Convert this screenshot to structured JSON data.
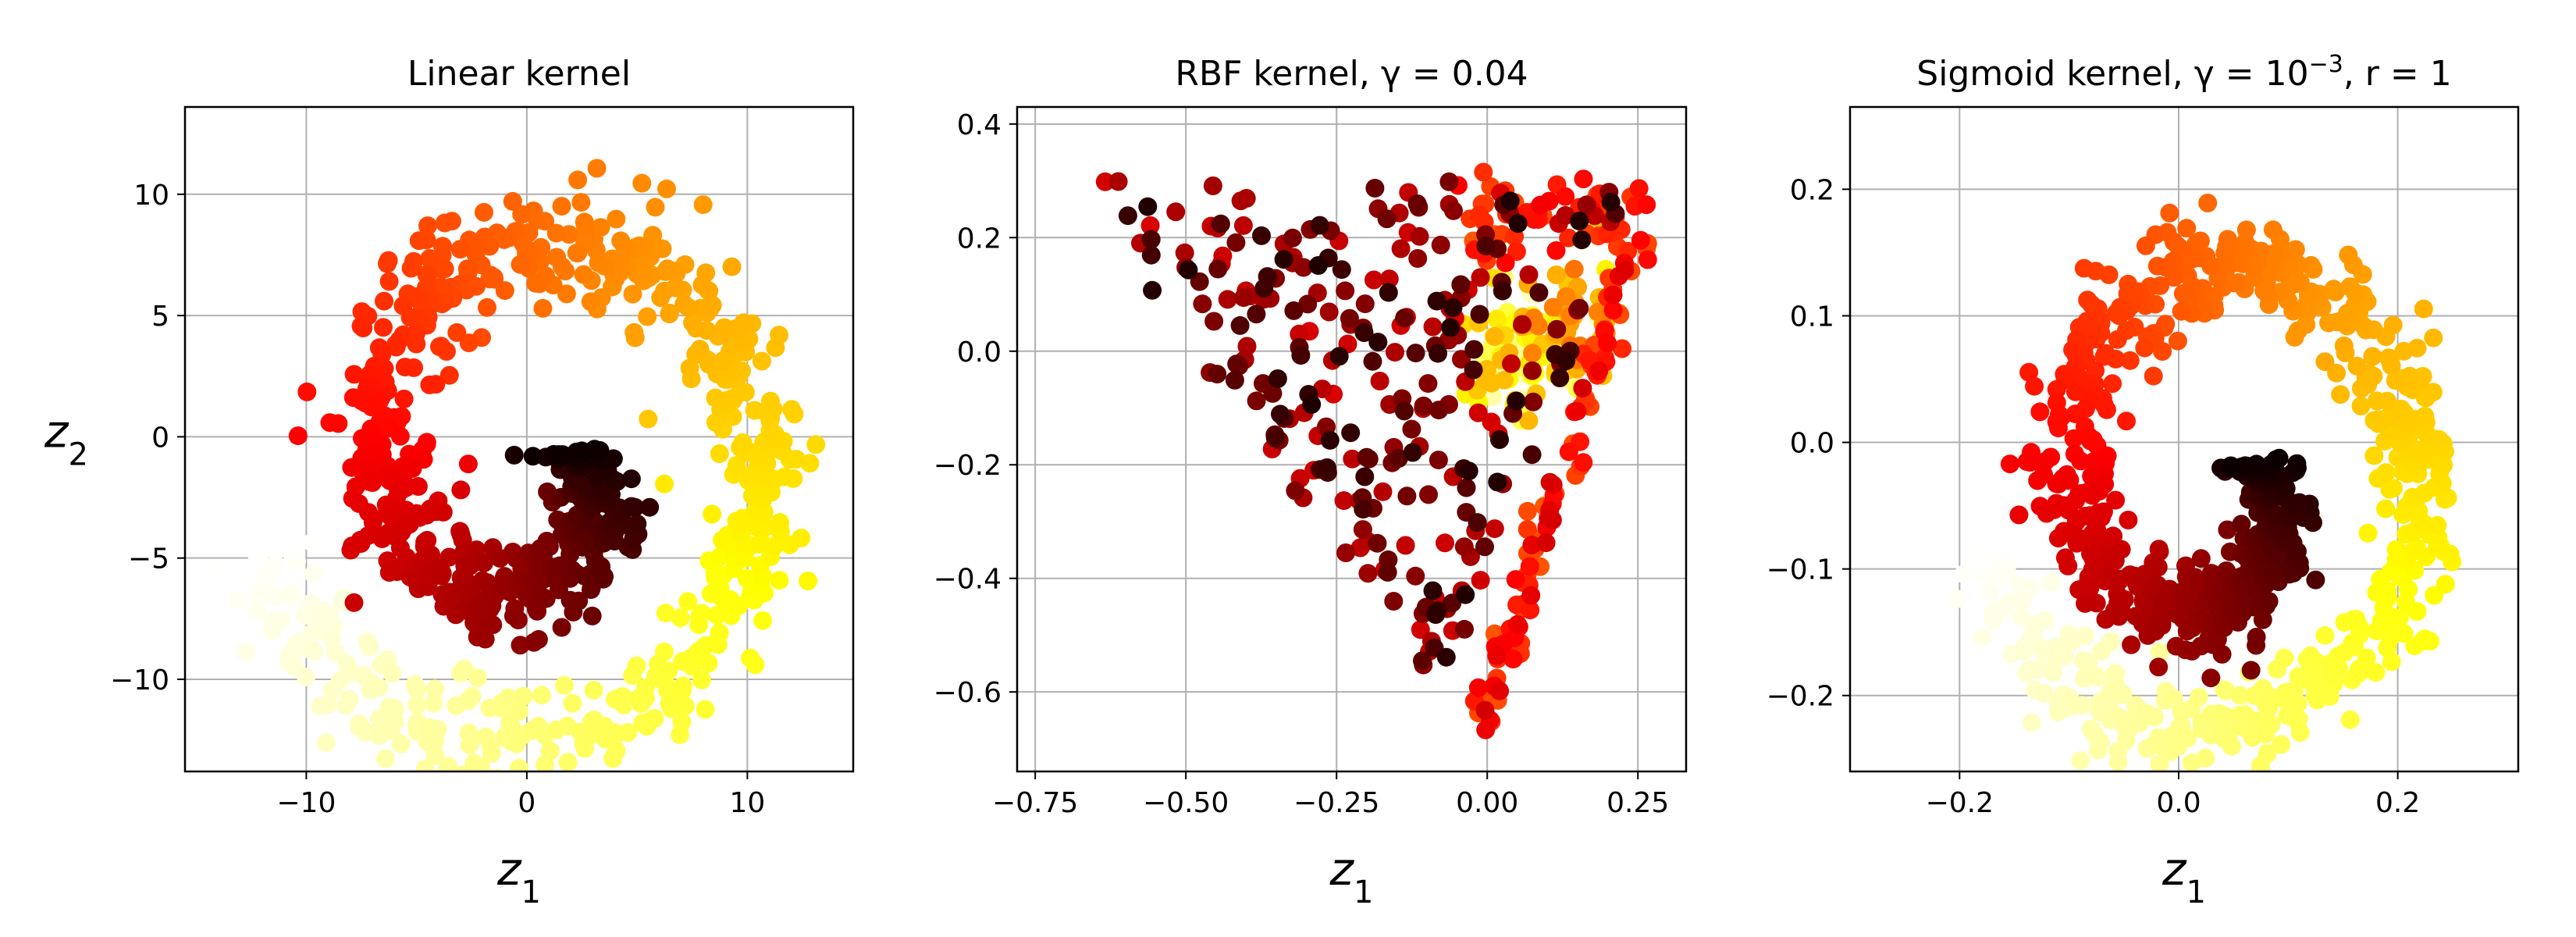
{
  "chart_data": [
    {
      "type": "scatter",
      "title_main": "Linear kernel",
      "title_sup": "",
      "title_tail": "",
      "xlabel": "z",
      "xlabel_sub": "1",
      "ylabel": "z",
      "ylabel_sub": "2",
      "xlim": [
        -15.5,
        14.8
      ],
      "ylim": [
        -13.8,
        13.6
      ],
      "xticks": [
        {
          "v": -10,
          "label": "−10"
        },
        {
          "v": 0,
          "label": "0"
        },
        {
          "v": 10,
          "label": "10"
        }
      ],
      "yticks": [
        {
          "v": 10,
          "label": "10"
        },
        {
          "v": 5,
          "label": "5"
        },
        {
          "v": 0,
          "label": "0"
        },
        {
          "v": -5,
          "label": "−5"
        },
        {
          "v": -10,
          "label": "−10"
        }
      ],
      "grid": true,
      "colormap": "hot",
      "shape": "swiss-roll",
      "params": {
        "cx": 0.3,
        "cy": -0.8,
        "rOuter": 13.0,
        "rInner": 6.8,
        "thick": 2.0
      }
    },
    {
      "type": "scatter",
      "title_main": "RBF kernel, γ = 0.04",
      "title_sup": "",
      "title_tail": "",
      "xlabel": "z",
      "xlabel_sub": "1",
      "ylabel": "",
      "ylabel_sub": "",
      "xlim": [
        -0.78,
        0.33
      ],
      "ylim": [
        -0.74,
        0.43
      ],
      "xticks": [
        {
          "v": -0.75,
          "label": "−0.75"
        },
        {
          "v": -0.5,
          "label": "−0.50"
        },
        {
          "v": -0.25,
          "label": "−0.25"
        },
        {
          "v": 0.0,
          "label": "0.00"
        },
        {
          "v": 0.25,
          "label": "0.25"
        }
      ],
      "yticks": [
        {
          "v": 0.4,
          "label": "0.4"
        },
        {
          "v": 0.2,
          "label": "0.2"
        },
        {
          "v": 0.0,
          "label": "0.0"
        },
        {
          "v": -0.2,
          "label": "−0.2"
        },
        {
          "v": -0.4,
          "label": "−0.4"
        },
        {
          "v": -0.6,
          "label": "−0.6"
        }
      ],
      "grid": true,
      "colormap": "hot",
      "shape": "rbf-triangle"
    },
    {
      "type": "scatter",
      "title_main": "Sigmoid kernel, γ = 10",
      "title_sup": "−3",
      "title_tail": ", r = 1",
      "xlabel": "z",
      "xlabel_sub": "1",
      "ylabel": "",
      "ylabel_sub": "",
      "xlim": [
        -0.3,
        0.31
      ],
      "ylim": [
        -0.26,
        0.265
      ],
      "xticks": [
        {
          "v": -0.2,
          "label": "−0.2"
        },
        {
          "v": 0.0,
          "label": "0.0"
        },
        {
          "v": 0.2,
          "label": "0.2"
        }
      ],
      "yticks": [
        {
          "v": 0.2,
          "label": "0.2"
        },
        {
          "v": 0.1,
          "label": "0.1"
        },
        {
          "v": 0.0,
          "label": "0.0"
        },
        {
          "v": -0.1,
          "label": "−0.1"
        },
        {
          "v": -0.2,
          "label": "−0.2"
        }
      ],
      "grid": true,
      "colormap": "hot",
      "shape": "swiss-roll",
      "params": {
        "cx": 0.035,
        "cy": -0.02,
        "rOuter": 0.225,
        "rInner": 0.135,
        "thick": 0.035
      }
    }
  ]
}
